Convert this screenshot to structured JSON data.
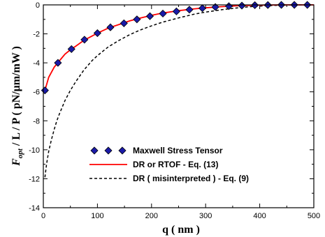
{
  "chart_data": {
    "type": "line",
    "xlabel": "q ( nm )",
    "ylabel_parts": [
      "F",
      "opt",
      " / L / P ( pN/",
      "μ",
      "m/mW )"
    ],
    "xlim": [
      0,
      500
    ],
    "ylim": [
      -14,
      0
    ],
    "x_ticks": [
      0,
      100,
      200,
      300,
      400,
      500
    ],
    "y_ticks": [
      0,
      -2,
      -4,
      -6,
      -8,
      -10,
      -12,
      -14
    ],
    "x_tick_labels": [
      "0",
      "100",
      "200",
      "300",
      "400",
      "500"
    ],
    "y_tick_labels": [
      "0",
      "-2",
      "-4",
      "-6",
      "-8",
      "-10",
      "-12",
      "-14"
    ],
    "legend_position": "bottom-right",
    "series": [
      {
        "name": "Maxwell Stress Tensor",
        "style": "markers",
        "marker": "diamond",
        "color": "#1a1aa8",
        "edge_color": "#000000",
        "x": [
          3,
          27,
          52,
          76,
          100,
          124,
          149,
          173,
          197,
          221,
          246,
          270,
          294,
          318,
          343,
          367,
          391,
          415,
          440,
          464,
          488
        ],
        "y": [
          -5.9,
          -4.0,
          -3.05,
          -2.4,
          -1.95,
          -1.55,
          -1.27,
          -1.0,
          -0.78,
          -0.6,
          -0.45,
          -0.33,
          -0.23,
          -0.15,
          -0.09,
          -0.05,
          -0.02,
          -0.01,
          0.0,
          0.0,
          0.0
        ]
      },
      {
        "name": "DR or RTOF - Eq. (13)",
        "style": "solid",
        "color": "#ff0000",
        "x": [
          3,
          10,
          20,
          30,
          40,
          50,
          60,
          75,
          90,
          100,
          120,
          140,
          160,
          180,
          200,
          220,
          250,
          280,
          300,
          330,
          360,
          400,
          440,
          480,
          500
        ],
        "y": [
          -5.9,
          -5.0,
          -4.3,
          -3.85,
          -3.4,
          -3.1,
          -2.85,
          -2.45,
          -2.15,
          -1.95,
          -1.6,
          -1.35,
          -1.1,
          -0.9,
          -0.72,
          -0.57,
          -0.4,
          -0.27,
          -0.2,
          -0.12,
          -0.06,
          -0.02,
          0.0,
          0.0,
          0.0
        ]
      },
      {
        "name": "DR ( misinterpreted )  - Eq. (9)",
        "style": "dashed",
        "color": "#000000",
        "x": [
          3,
          6,
          10,
          15,
          20,
          25,
          30,
          40,
          50,
          60,
          75,
          90,
          100,
          120,
          140,
          160,
          180,
          200,
          220,
          250,
          280,
          300,
          330,
          360,
          380,
          400,
          420,
          440,
          460,
          480,
          500
        ],
        "y": [
          -11.9,
          -11.0,
          -10.1,
          -9.3,
          -8.6,
          -8.0,
          -7.5,
          -6.6,
          -5.9,
          -5.3,
          -4.5,
          -3.85,
          -3.5,
          -2.9,
          -2.45,
          -2.05,
          -1.72,
          -1.45,
          -1.2,
          -0.9,
          -0.63,
          -0.5,
          -0.33,
          -0.2,
          -0.13,
          -0.08,
          -0.05,
          -0.02,
          -0.01,
          0.0,
          0.0
        ]
      }
    ]
  }
}
